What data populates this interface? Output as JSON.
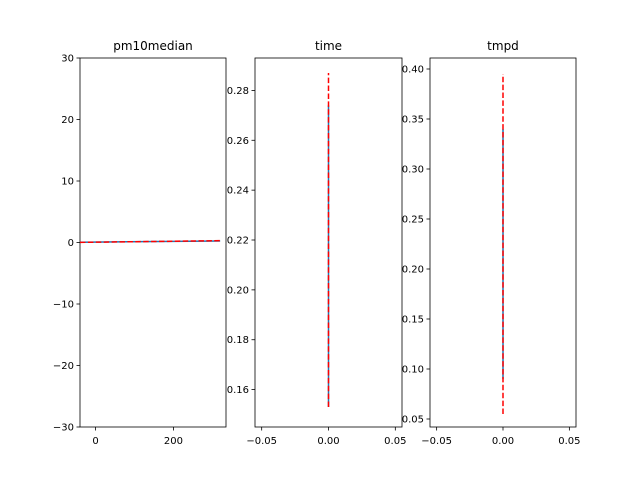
{
  "figure": {
    "background": "#ffffff"
  },
  "chart_data": [
    {
      "type": "line",
      "title": "pm10median",
      "xlim": [
        -40,
        335
      ],
      "ylim": [
        -30,
        30
      ],
      "xticks": [
        0,
        200
      ],
      "xtick_labels": [
        "0",
        "200"
      ],
      "yticks": [
        -30,
        -20,
        -10,
        0,
        10,
        20,
        30
      ],
      "ytick_labels": [
        "−30",
        "−20",
        "−10",
        "0",
        "10",
        "20",
        "30"
      ],
      "grid": false,
      "series": [
        {
          "x": [
            -40,
            320
          ],
          "y": [
            0.05,
            0.25
          ],
          "color": "#1f77b4",
          "style": "solid"
        },
        {
          "x": [
            -40,
            320
          ],
          "y": [
            0.02,
            0.3
          ],
          "color": "#ff0000",
          "style": "dashed"
        }
      ]
    },
    {
      "type": "line",
      "title": "time",
      "xlim": [
        -0.055,
        0.055
      ],
      "ylim": [
        0.145,
        0.293
      ],
      "xticks": [
        -0.05,
        0,
        0.05
      ],
      "xtick_labels": [
        "−0.05",
        "0.00",
        "0.05"
      ],
      "yticks": [
        0.16,
        0.18,
        0.2,
        0.22,
        0.24,
        0.26,
        0.28
      ],
      "ytick_labels": [
        "0.16",
        "0.18",
        "0.20",
        "0.22",
        "0.24",
        "0.26",
        "0.28"
      ],
      "grid": false,
      "series": [
        {
          "x": [
            0,
            0
          ],
          "y": [
            0.153,
            0.274
          ],
          "color": "#1f77b4",
          "style": "solid"
        },
        {
          "x": [
            0,
            0
          ],
          "y": [
            0.153,
            0.287
          ],
          "color": "#ff0000",
          "style": "dashed"
        }
      ]
    },
    {
      "type": "line",
      "title": "tmpd",
      "xlim": [
        -0.055,
        0.055
      ],
      "ylim": [
        0.042,
        0.411
      ],
      "xticks": [
        -0.05,
        0,
        0.05
      ],
      "xtick_labels": [
        "−0.05",
        "0.00",
        "0.05"
      ],
      "yticks": [
        0.05,
        0.1,
        0.15,
        0.2,
        0.25,
        0.3,
        0.35,
        0.4
      ],
      "ytick_labels": [
        "0.05",
        "0.10",
        "0.15",
        "0.20",
        "0.25",
        "0.30",
        "0.35",
        "0.40"
      ],
      "grid": false,
      "series": [
        {
          "x": [
            0,
            0
          ],
          "y": [
            0.09,
            0.34
          ],
          "color": "#1f77b4",
          "style": "solid"
        },
        {
          "x": [
            0,
            0
          ],
          "y": [
            0.055,
            0.395
          ],
          "color": "#ff0000",
          "style": "dashed"
        }
      ]
    }
  ]
}
